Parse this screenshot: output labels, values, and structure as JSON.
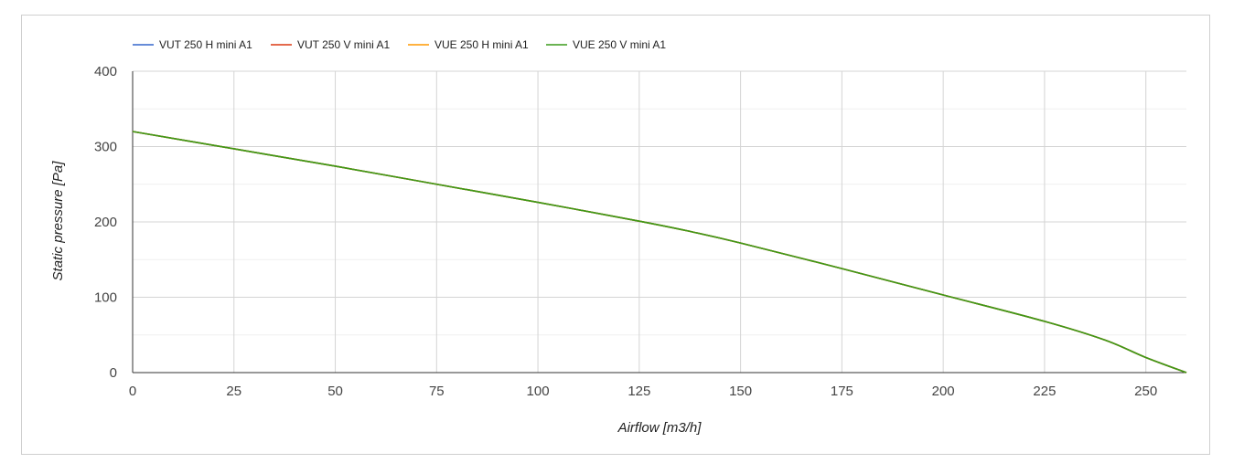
{
  "chart_data": {
    "type": "line",
    "xlabel": "Airflow [m3/h]",
    "ylabel": "Static pressure [Pa]",
    "xlim": [
      0,
      260
    ],
    "ylim": [
      0,
      400
    ],
    "x_ticks": [
      0,
      25,
      50,
      75,
      100,
      125,
      150,
      175,
      200,
      225,
      250
    ],
    "y_ticks": [
      0,
      100,
      200,
      300,
      400
    ],
    "grid": true,
    "legend_position": "top-left",
    "series": [
      {
        "name": "VUT 250 H mini A1",
        "color": "#3366cc",
        "x": [
          0,
          25,
          50,
          75,
          100,
          125,
          137,
          150,
          175,
          200,
          225,
          240,
          250,
          260
        ],
        "y": [
          320,
          297,
          274,
          250,
          226,
          201,
          188,
          172,
          138,
          103,
          68,
          43,
          20,
          0
        ]
      },
      {
        "name": "VUT 250 V mini A1",
        "color": "#dc3912",
        "x": [
          0,
          25,
          50,
          75,
          100,
          125,
          137,
          150,
          175,
          200,
          225,
          240,
          250,
          260
        ],
        "y": [
          320,
          297,
          274,
          250,
          226,
          201,
          188,
          172,
          138,
          103,
          68,
          43,
          20,
          0
        ]
      },
      {
        "name": "VUE 250 H mini A1",
        "color": "#ff9900",
        "x": [
          0,
          25,
          50,
          75,
          100,
          125,
          137,
          150,
          175,
          200,
          225,
          240,
          250,
          260
        ],
        "y": [
          320,
          297,
          274,
          250,
          226,
          201,
          188,
          172,
          138,
          103,
          68,
          43,
          20,
          0
        ]
      },
      {
        "name": "VUE 250 V mini A1",
        "color": "#3a9a1a",
        "x": [
          0,
          25,
          50,
          75,
          100,
          125,
          137,
          150,
          175,
          200,
          225,
          240,
          250,
          260
        ],
        "y": [
          320,
          297,
          274,
          250,
          226,
          201,
          188,
          172,
          138,
          103,
          68,
          43,
          20,
          0
        ]
      }
    ]
  }
}
